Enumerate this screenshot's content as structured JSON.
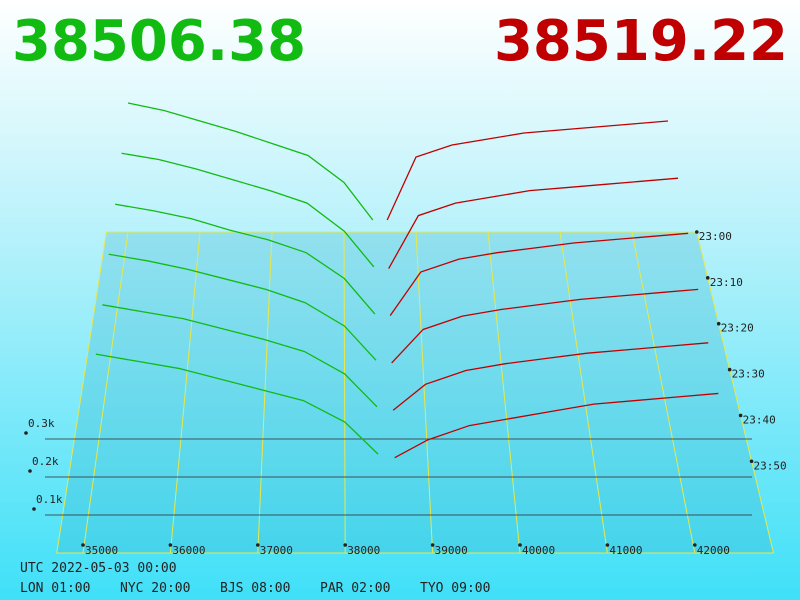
{
  "chart_data": {
    "type": "depth3d",
    "bid_price": 38506.38,
    "ask_price": 38519.22,
    "bid_color": "#11bb11",
    "ask_color": "#c00000",
    "xlim": [
      34700,
      42900
    ],
    "xticks": [
      35000,
      36000,
      37000,
      38000,
      39000,
      40000,
      41000,
      42000
    ],
    "zticks": [
      {
        "value": 100,
        "label": "0.1k"
      },
      {
        "value": 200,
        "label": "0.2k"
      },
      {
        "value": 300,
        "label": "0.3k"
      }
    ],
    "times": [
      "23:00",
      "23:10",
      "23:20",
      "23:30",
      "23:40",
      "23:50"
    ],
    "bid_prices": [
      35000,
      35500,
      36000,
      36500,
      37000,
      37500,
      38000,
      38400
    ],
    "ask_prices": [
      38600,
      39000,
      39500,
      40000,
      40500,
      41000,
      41500,
      42000,
      42500
    ],
    "bids": [
      {
        "values": [
          430,
          405,
          370,
          335,
          295,
          255,
          165,
          40
        ]
      },
      {
        "values": [
          400,
          380,
          350,
          315,
          280,
          240,
          150,
          35
        ]
      },
      {
        "values": [
          370,
          350,
          325,
          290,
          260,
          220,
          140,
          30
        ]
      },
      {
        "values": [
          345,
          325,
          300,
          270,
          240,
          200,
          130,
          28
        ]
      },
      {
        "values": [
          320,
          300,
          280,
          250,
          220,
          185,
          120,
          25
        ]
      },
      {
        "values": [
          300,
          280,
          260,
          230,
          200,
          170,
          110,
          20
        ]
      }
    ],
    "asks": [
      {
        "values": [
          40,
          250,
          290,
          310,
          330,
          340,
          350,
          360,
          370
        ]
      },
      {
        "values": [
          30,
          200,
          240,
          260,
          280,
          290,
          300,
          310,
          320
        ]
      },
      {
        "values": [
          25,
          160,
          200,
          220,
          235,
          250,
          260,
          270,
          280
        ]
      },
      {
        "values": [
          20,
          120,
          160,
          180,
          195,
          210,
          220,
          230,
          240
        ]
      },
      {
        "values": [
          15,
          90,
          130,
          150,
          165,
          180,
          190,
          200,
          210
        ]
      },
      {
        "values": [
          10,
          60,
          100,
          120,
          140,
          160,
          170,
          180,
          190
        ]
      }
    ],
    "footer": {
      "utc": "UTC 2022-05-03 00:00",
      "zones": [
        "LON 01:00",
        "NYC 20:00",
        "BJS 08:00",
        "PAR 02:00",
        "TYO 09:00"
      ]
    }
  }
}
